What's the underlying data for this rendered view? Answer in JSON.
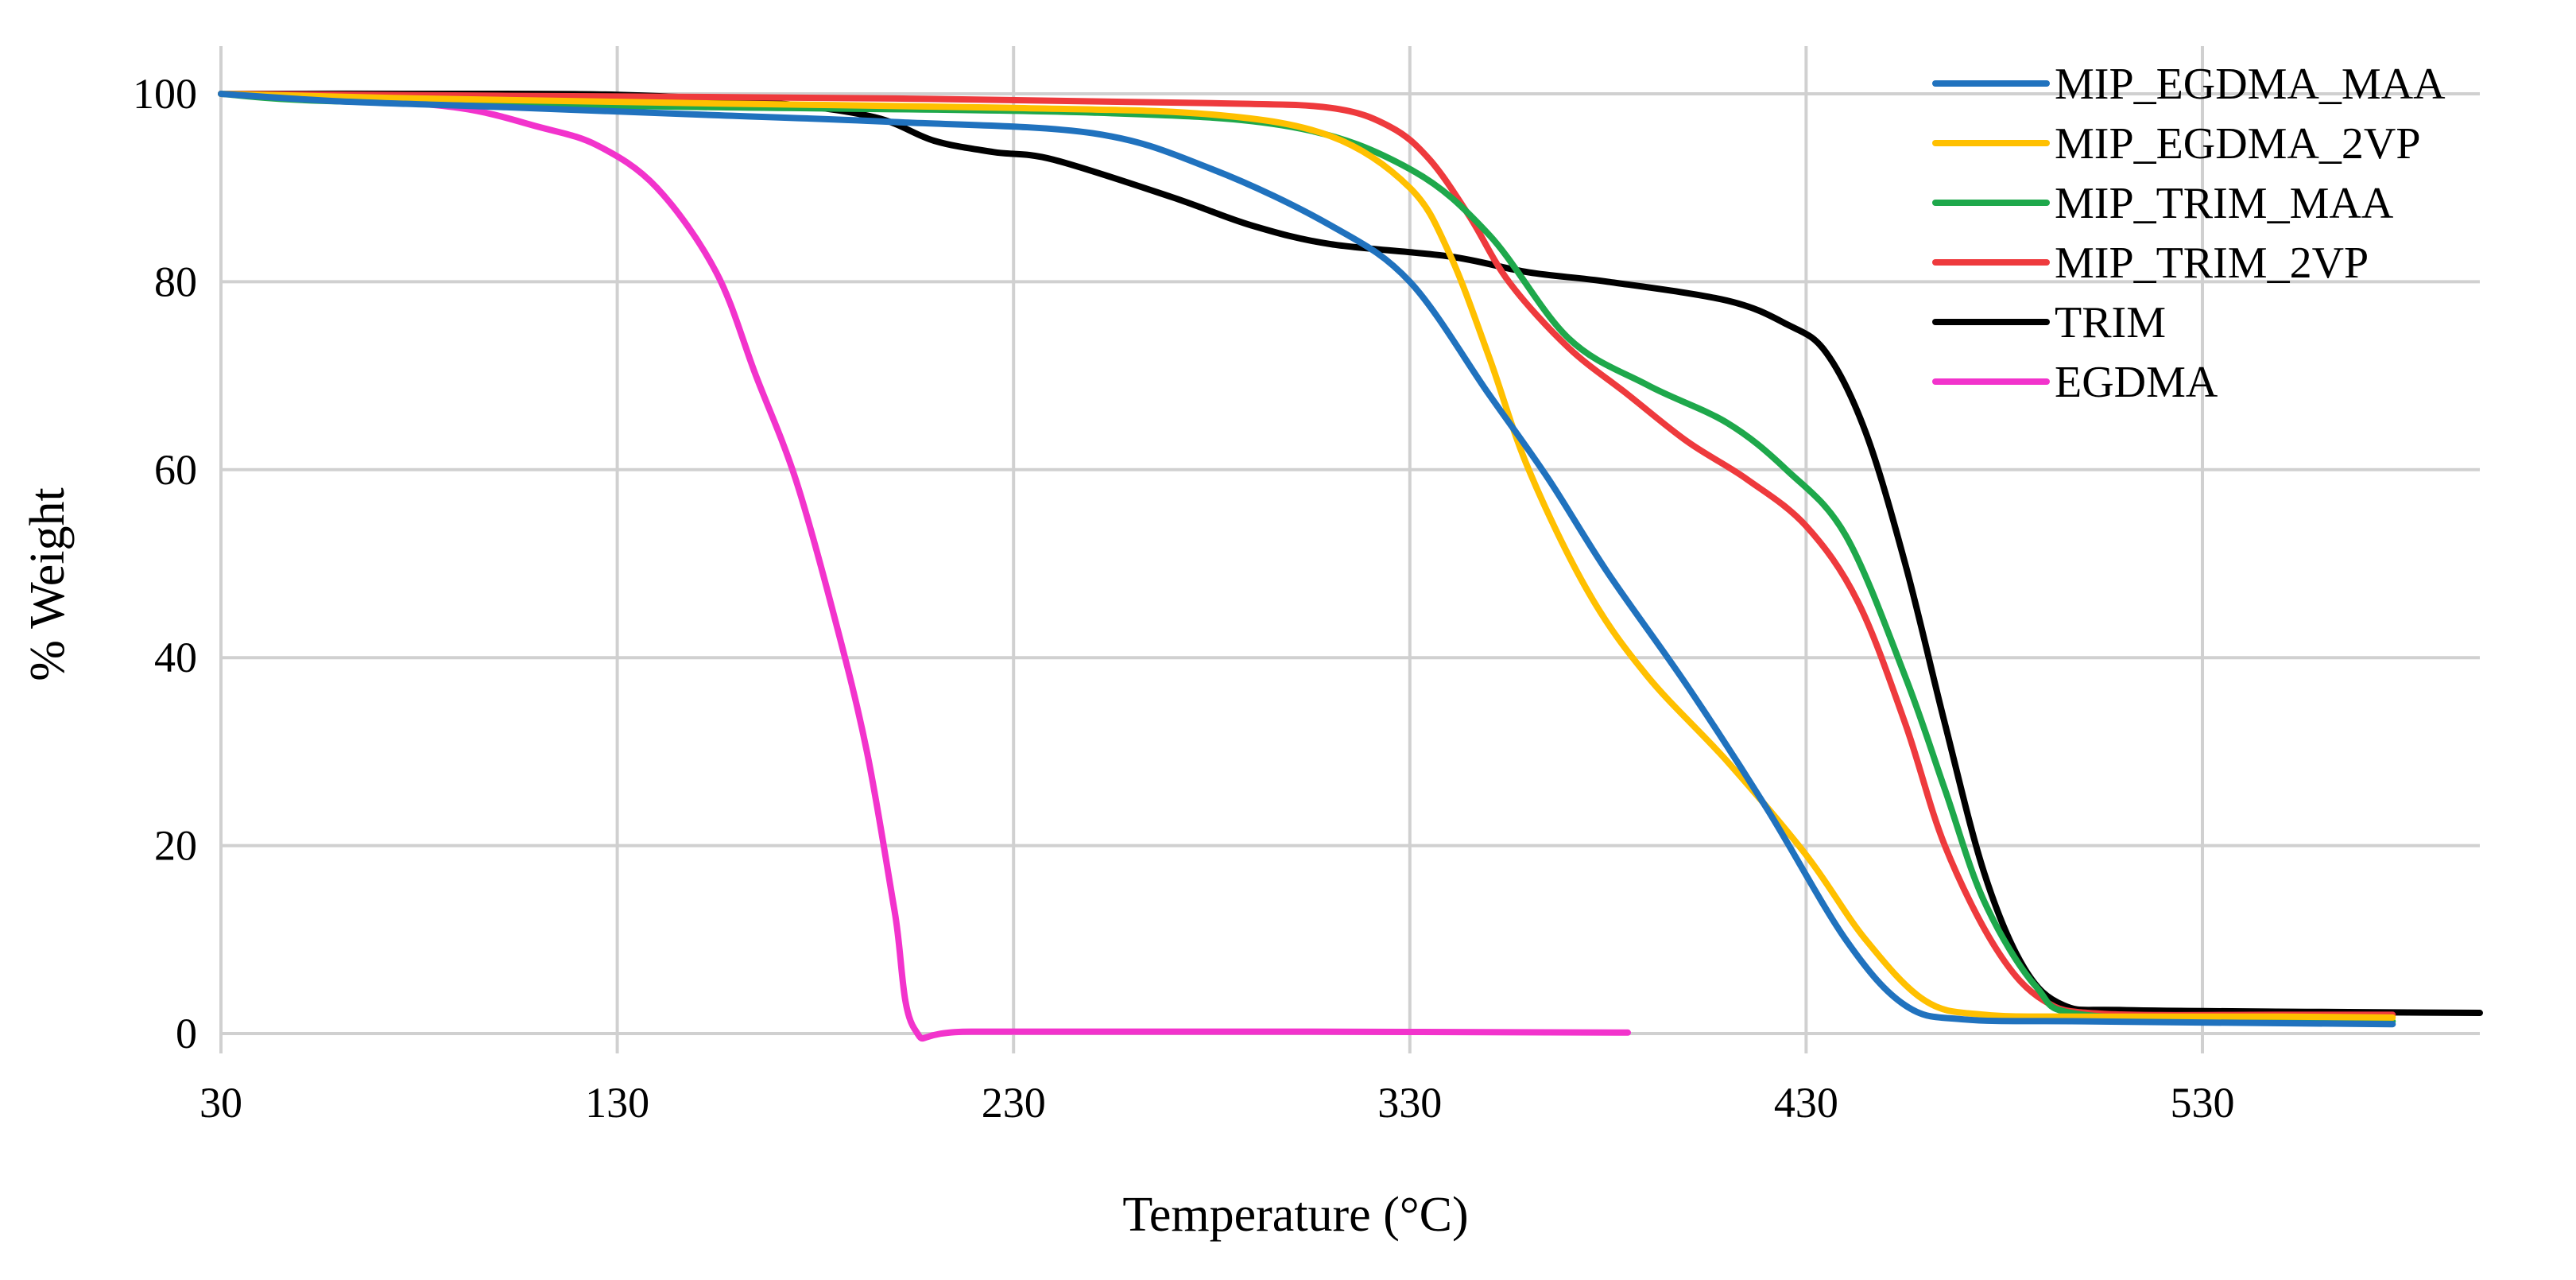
{
  "chart_data": {
    "type": "line",
    "title": "",
    "xlabel": "Temperature (°C)",
    "ylabel": "% Weight",
    "xlim": [
      30,
      600
    ],
    "ylim": [
      0,
      100
    ],
    "x_ticks": [
      30,
      130,
      230,
      330,
      430,
      530
    ],
    "y_ticks": [
      0,
      20,
      40,
      60,
      80,
      100
    ],
    "grid": true,
    "legend_position": "top-right",
    "series": [
      {
        "name": "MIP_EGDMA_MAA",
        "color": "#2072BE",
        "points": [
          [
            30,
            100
          ],
          [
            60,
            99.2
          ],
          [
            100,
            98.6
          ],
          [
            150,
            97.8
          ],
          [
            200,
            97
          ],
          [
            250,
            95.8
          ],
          [
            280,
            92
          ],
          [
            310,
            86
          ],
          [
            330,
            80
          ],
          [
            350,
            68
          ],
          [
            365,
            59
          ],
          [
            380,
            49
          ],
          [
            400,
            37
          ],
          [
            420,
            24
          ],
          [
            440,
            10
          ],
          [
            455,
            3
          ],
          [
            470,
            1.5
          ],
          [
            500,
            1.3
          ],
          [
            550,
            1.1
          ],
          [
            578,
            1
          ]
        ]
      },
      {
        "name": "MIP_EGDMA_2VP",
        "color": "#FFC000",
        "points": [
          [
            30,
            100
          ],
          [
            80,
            99.5
          ],
          [
            150,
            99
          ],
          [
            230,
            98.5
          ],
          [
            280,
            97.8
          ],
          [
            310,
            95.5
          ],
          [
            330,
            90
          ],
          [
            340,
            83
          ],
          [
            350,
            72
          ],
          [
            360,
            60
          ],
          [
            375,
            47
          ],
          [
            390,
            38
          ],
          [
            410,
            29
          ],
          [
            430,
            19
          ],
          [
            445,
            10
          ],
          [
            460,
            3.5
          ],
          [
            475,
            2
          ],
          [
            500,
            1.8
          ],
          [
            550,
            1.8
          ],
          [
            578,
            1.7
          ]
        ]
      },
      {
        "name": "MIP_TRIM_MAA",
        "color": "#1EA84B",
        "points": [
          [
            30,
            100
          ],
          [
            60,
            99.2
          ],
          [
            150,
            98.6
          ],
          [
            250,
            98
          ],
          [
            300,
            96.5
          ],
          [
            330,
            92
          ],
          [
            350,
            85
          ],
          [
            370,
            74
          ],
          [
            390,
            69
          ],
          [
            410,
            65
          ],
          [
            425,
            60
          ],
          [
            440,
            53
          ],
          [
            455,
            38
          ],
          [
            465,
            26
          ],
          [
            475,
            14
          ],
          [
            488,
            5
          ],
          [
            500,
            2
          ],
          [
            550,
            1.5
          ],
          [
            578,
            1.3
          ]
        ]
      },
      {
        "name": "MIP_TRIM_2VP",
        "color": "#EE3A3D",
        "points": [
          [
            30,
            100
          ],
          [
            100,
            99.8
          ],
          [
            200,
            99.5
          ],
          [
            280,
            99
          ],
          [
            310,
            98.5
          ],
          [
            325,
            96.5
          ],
          [
            335,
            93
          ],
          [
            345,
            87
          ],
          [
            355,
            80
          ],
          [
            370,
            73
          ],
          [
            385,
            68
          ],
          [
            400,
            63
          ],
          [
            415,
            59
          ],
          [
            430,
            54
          ],
          [
            443,
            46
          ],
          [
            455,
            33
          ],
          [
            465,
            20
          ],
          [
            478,
            9
          ],
          [
            490,
            3.5
          ],
          [
            505,
            2.1
          ],
          [
            550,
            2
          ],
          [
            578,
            2
          ]
        ]
      },
      {
        "name": "TRIM",
        "color": "#000000",
        "points": [
          [
            30,
            100
          ],
          [
            80,
            100
          ],
          [
            130,
            99.9
          ],
          [
            170,
            99
          ],
          [
            195,
            97.5
          ],
          [
            210,
            95
          ],
          [
            225,
            93.8
          ],
          [
            240,
            93
          ],
          [
            270,
            89
          ],
          [
            290,
            86
          ],
          [
            310,
            84
          ],
          [
            340,
            82.7
          ],
          [
            360,
            81
          ],
          [
            380,
            80
          ],
          [
            410,
            78
          ],
          [
            425,
            75.5
          ],
          [
            435,
            72.5
          ],
          [
            445,
            64
          ],
          [
            455,
            50
          ],
          [
            465,
            33
          ],
          [
            475,
            17
          ],
          [
            485,
            7
          ],
          [
            495,
            3
          ],
          [
            510,
            2.5
          ],
          [
            560,
            2.3
          ],
          [
            600,
            2.2
          ]
        ]
      },
      {
        "name": "EGDMA",
        "color": "#F233CC",
        "points": [
          [
            30,
            100
          ],
          [
            60,
            99.5
          ],
          [
            90,
            98.5
          ],
          [
            110,
            96.5
          ],
          [
            125,
            94.5
          ],
          [
            140,
            90
          ],
          [
            155,
            81
          ],
          [
            165,
            70
          ],
          [
            175,
            59
          ],
          [
            185,
            44
          ],
          [
            193,
            30
          ],
          [
            200,
            13
          ],
          [
            205,
            0.5
          ],
          [
            220,
            0.2
          ],
          [
            300,
            0.2
          ],
          [
            385,
            0.1
          ]
        ]
      }
    ]
  }
}
